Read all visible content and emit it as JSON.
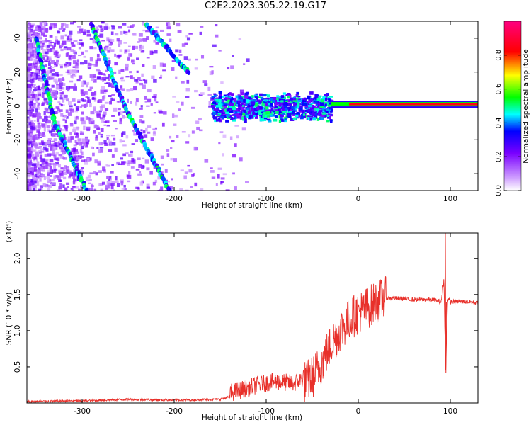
{
  "figure": {
    "title": "C2E2.2023.305.22.19.G17"
  },
  "chart_data": [
    {
      "type": "heatmap",
      "xlabel": "Height of straight line (km)",
      "ylabel": "Frequency (Hz)",
      "xlim": [
        -360,
        130
      ],
      "ylim": [
        -50,
        50
      ],
      "xticks": [
        -300,
        -200,
        -100,
        0,
        100
      ],
      "yticks": [
        -40,
        -20,
        0,
        20,
        40
      ],
      "colorbar": {
        "label": "Normalized spectral amplitude",
        "range": [
          0,
          1
        ],
        "ticks": [
          "0.0",
          "0.2",
          "0.4",
          "0.6",
          "0.8"
        ],
        "colors": [
          "#ffffff",
          "#7a00ff",
          "#0000ff",
          "#00ffff",
          "#00ff00",
          "#ffff00",
          "#ff0000",
          "#ff0080"
        ]
      },
      "features": [
        {
          "kind": "diagonal_streak",
          "x_start": -350,
          "y_start": 40,
          "x_end": -330,
          "y_end": -10
        },
        {
          "kind": "diagonal_streak",
          "x_start": -330,
          "y_start": -10,
          "x_end": -295,
          "y_end": -50
        },
        {
          "kind": "diagonal_streak",
          "x_start": -290,
          "y_start": 48,
          "x_end": -250,
          "y_end": -5
        },
        {
          "kind": "diagonal_streak",
          "x_start": -250,
          "y_start": -5,
          "x_end": -205,
          "y_end": -50
        },
        {
          "kind": "diagonal_streak",
          "x_start": -230,
          "y_start": 48,
          "x_end": -185,
          "y_end": 20
        },
        {
          "kind": "band",
          "x_start": -160,
          "x_end": -30,
          "y_center": 0,
          "amplitude": 0.5
        },
        {
          "kind": "band",
          "x_start": -30,
          "x_end": 130,
          "y_center": 1,
          "amplitude": 0.9
        }
      ]
    },
    {
      "type": "line",
      "xlabel": "Height of straight line (km)",
      "ylabel": "SNR (10 * v/v)",
      "yunit": "(x10⁴)",
      "xlim": [
        -360,
        130
      ],
      "ylim": [
        0,
        2.35
      ],
      "xticks": [
        -300,
        -200,
        -100,
        0,
        100
      ],
      "yticks": [
        0.5,
        1.0,
        1.5,
        2.0
      ],
      "ytick_labels": [
        "0.5",
        "1.0",
        "1.5",
        "2.0"
      ],
      "color": "#e8302a",
      "x": [
        -360,
        -300,
        -250,
        -200,
        -150,
        -130,
        -110,
        -90,
        -70,
        -50,
        -40,
        -30,
        -20,
        -10,
        0,
        10,
        20,
        30,
        40,
        60,
        80,
        90,
        93,
        95,
        97,
        100,
        120,
        130
      ],
      "y": [
        0.02,
        0.03,
        0.05,
        0.04,
        0.05,
        0.12,
        0.2,
        0.25,
        0.22,
        0.35,
        0.55,
        0.8,
        1.0,
        1.15,
        1.25,
        1.32,
        1.4,
        1.45,
        1.45,
        1.43,
        1.43,
        1.4,
        1.7,
        0.42,
        1.45,
        1.4,
        1.4,
        1.38
      ]
    }
  ]
}
